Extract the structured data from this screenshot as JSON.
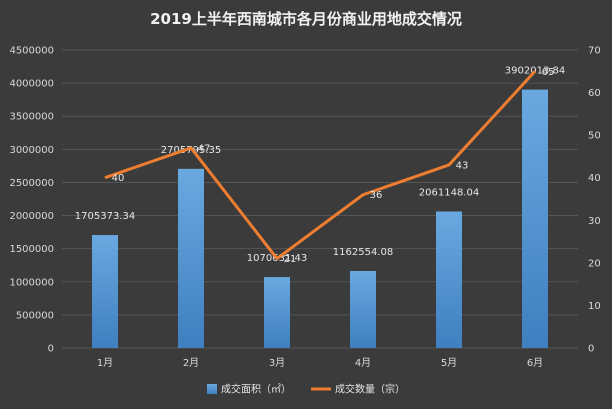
{
  "chart_data": {
    "type": "bar",
    "title": "2019上半年西南城市各月份商业用地成交情况",
    "categories": [
      "1月",
      "2月",
      "3月",
      "4月",
      "5月",
      "6月"
    ],
    "series": [
      {
        "name": "成交面积（㎡）",
        "type": "bar",
        "axis": "left",
        "values": [
          1705373.34,
          2705795.35,
          1070631.43,
          1162554.08,
          2061148.04,
          3902013.84
        ],
        "labels": [
          "1705373.34",
          "2705795.35",
          "1070631.43",
          "1162554.08",
          "2061148.04",
          "3902013.84"
        ],
        "color": "#5b9bd5"
      },
      {
        "name": "成交数量（宗）",
        "type": "line",
        "axis": "right",
        "values": [
          40,
          47,
          21,
          36,
          43,
          65
        ],
        "labels": [
          "40",
          "47",
          "21",
          "36",
          "43",
          "65"
        ],
        "color": "#ed7d31"
      }
    ],
    "y_left": {
      "min": 0,
      "max": 4500000,
      "step": 500000
    },
    "y_right": {
      "min": 0,
      "max": 70,
      "step": 10
    },
    "legend_position": "bottom",
    "grid": true
  }
}
